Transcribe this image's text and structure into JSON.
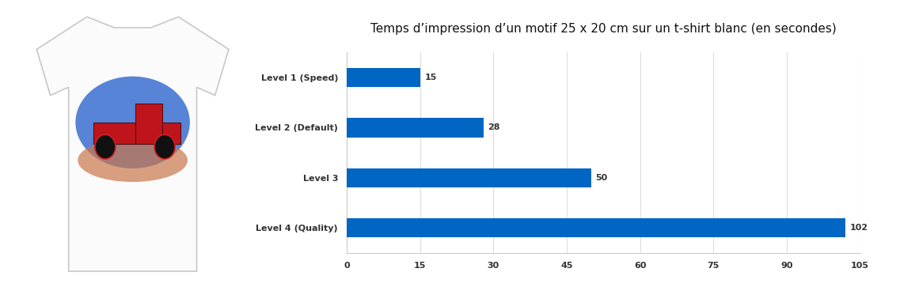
{
  "chart_data": {
    "type": "bar",
    "orientation": "horizontal",
    "title": "Temps d’impression d’un motif 25 x 20 cm sur un t-shirt blanc (en secondes)",
    "categories": [
      "Level 1 (Speed)",
      "Level 2 (Default)",
      "Level 3",
      "Level 4 (Quality)"
    ],
    "values": [
      15,
      28,
      50,
      102
    ],
    "color": "#0066c4",
    "xlim": [
      0,
      105
    ],
    "xticks": [
      0,
      15,
      30,
      45,
      60,
      75,
      90,
      105
    ],
    "grid": true,
    "data_labels": true
  }
}
